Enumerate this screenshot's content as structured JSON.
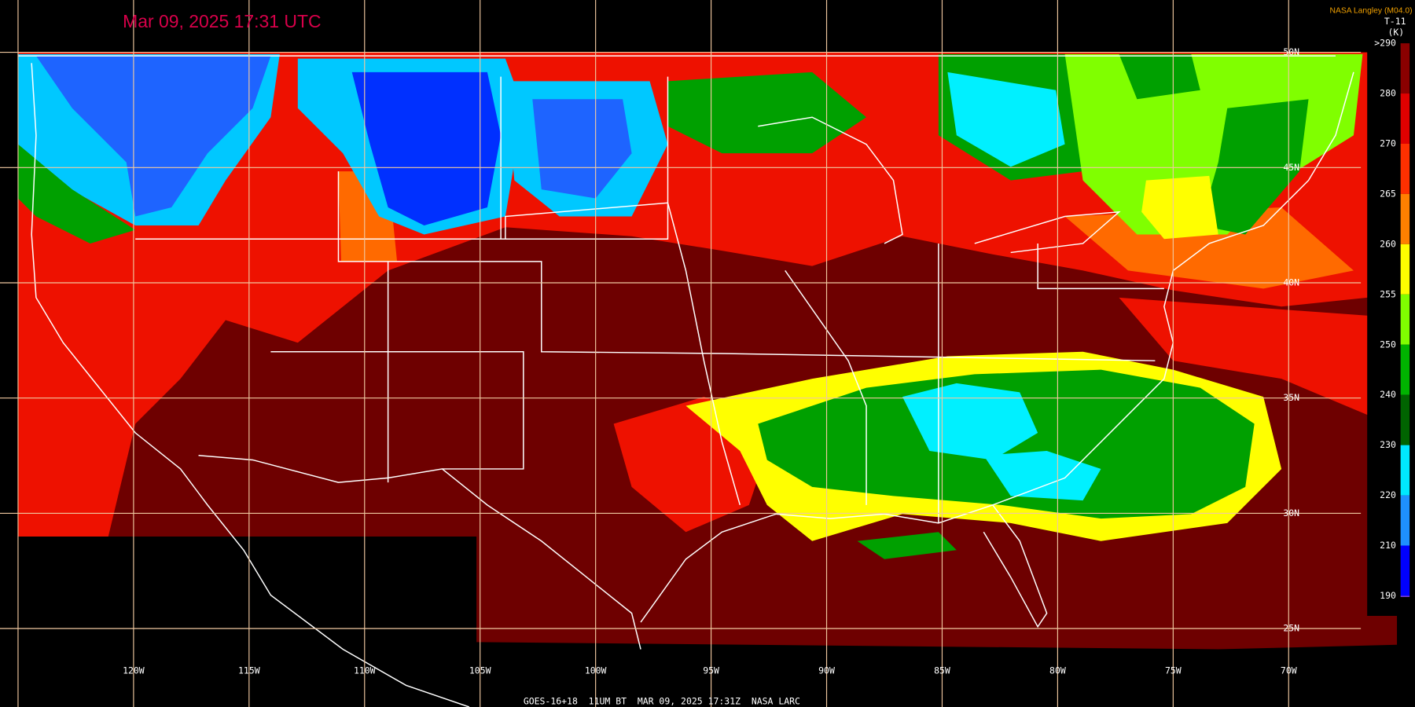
{
  "header": {
    "title": "Mar 09, 2025 17:31 UTC",
    "source": "NASA Langley (M04.0)"
  },
  "legend": {
    "title": "T-11",
    "unit": "(K)",
    "labels": [
      ">290",
      "280",
      "270",
      "265",
      "260",
      "255",
      "250",
      "240",
      "230",
      "220",
      "210",
      "190"
    ]
  },
  "axes": {
    "longitude": [
      "120W",
      "115W",
      "110W",
      "105W",
      "100W",
      "95W",
      "90W",
      "85W",
      "80W",
      "75W",
      "70W"
    ],
    "latitude": [
      "50N",
      "45N",
      "40N",
      "35N",
      "30N",
      "25N"
    ]
  },
  "footer": {
    "caption": "GOES-16+18  11UM BT  MAR 09, 2025 17:31Z  NASA LARC"
  }
}
